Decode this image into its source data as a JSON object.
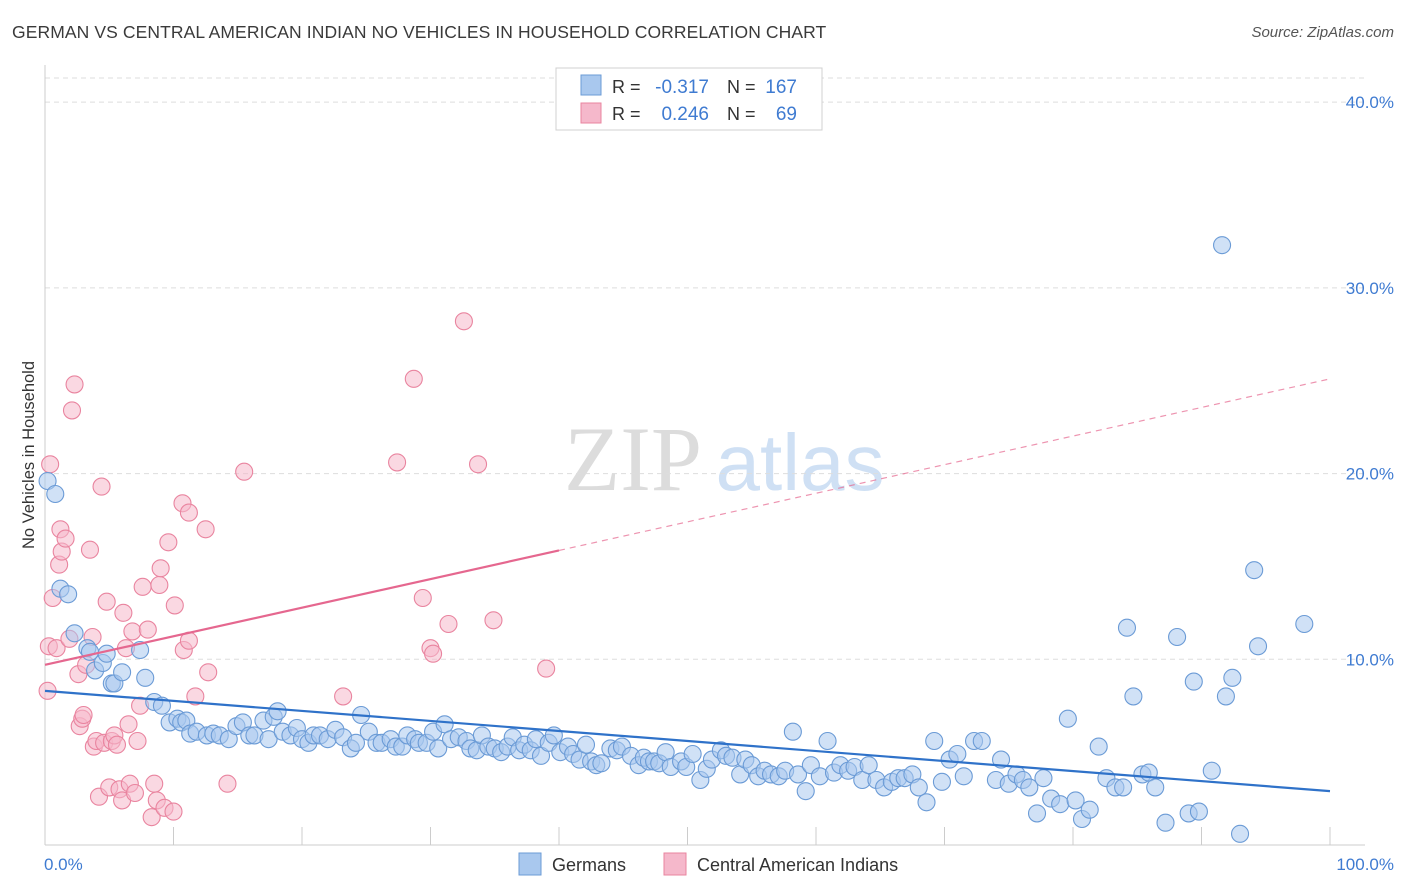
{
  "title": "GERMAN VS CENTRAL AMERICAN INDIAN NO VEHICLES IN HOUSEHOLD CORRELATION CHART",
  "source": "Source: ZipAtlas.com",
  "watermark": {
    "zip": "ZIP",
    "atlas": "atlas"
  },
  "colors": {
    "blue_fill": "#a9c8ee",
    "blue_stroke": "#6b9bd6",
    "blue_line": "#2f72c9",
    "pink_fill": "#f5b8cb",
    "pink_stroke": "#e9849f",
    "pink_line": "#e5678f",
    "tick_text": "#3f7bd1",
    "grid": "#dddddd"
  },
  "legend_stats": [
    {
      "r_label": "R =",
      "r_value": "-0.317",
      "n_label": "N =",
      "n_value": "167"
    },
    {
      "r_label": "R =",
      "r_value": "0.246",
      "n_label": "N =",
      "n_value": "69"
    }
  ],
  "chart_data": {
    "type": "scatter",
    "title": "GERMAN VS CENTRAL AMERICAN INDIAN NO VEHICLES IN HOUSEHOLD CORRELATION CHART",
    "xlabel": "",
    "ylabel": "No Vehicles in Household",
    "xlim": [
      0,
      100
    ],
    "ylim": [
      0,
      42
    ],
    "x_tick_labels": [
      "0.0%",
      "100.0%"
    ],
    "y_ticks": [
      10,
      20,
      30,
      40
    ],
    "y_tick_labels": [
      "10.0%",
      "20.0%",
      "30.0%",
      "40.0%"
    ],
    "grid": true,
    "legend_position": "bottom-center",
    "series": [
      {
        "name": "Germans",
        "color": "#a9c8ee",
        "trend": {
          "x": [
            0,
            100
          ],
          "y": [
            8.3,
            2.9
          ],
          "dashed_from": null
        },
        "points": [
          [
            0.2,
            19.6
          ],
          [
            0.8,
            18.9
          ],
          [
            1.2,
            13.8
          ],
          [
            1.8,
            13.5
          ],
          [
            2.3,
            11.4
          ],
          [
            3.3,
            10.6
          ],
          [
            3.5,
            10.4
          ],
          [
            3.9,
            9.4
          ],
          [
            4.5,
            9.8
          ],
          [
            4.8,
            10.3
          ],
          [
            5.2,
            8.7
          ],
          [
            5.4,
            8.7
          ],
          [
            6.0,
            9.3
          ],
          [
            7.4,
            10.5
          ],
          [
            7.8,
            9.0
          ],
          [
            8.5,
            7.7
          ],
          [
            9.1,
            7.5
          ],
          [
            9.7,
            6.6
          ],
          [
            10.3,
            6.8
          ],
          [
            10.6,
            6.6
          ],
          [
            11.0,
            6.7
          ],
          [
            11.3,
            6.0
          ],
          [
            11.8,
            6.1
          ],
          [
            12.6,
            5.9
          ],
          [
            13.1,
            6.0
          ],
          [
            13.6,
            5.9
          ],
          [
            14.3,
            5.7
          ],
          [
            14.9,
            6.4
          ],
          [
            15.4,
            6.6
          ],
          [
            15.9,
            5.9
          ],
          [
            16.3,
            5.9
          ],
          [
            17.0,
            6.7
          ],
          [
            17.4,
            5.7
          ],
          [
            17.8,
            6.9
          ],
          [
            18.1,
            7.2
          ],
          [
            18.5,
            6.1
          ],
          [
            19.1,
            5.9
          ],
          [
            19.6,
            6.3
          ],
          [
            20.0,
            5.7
          ],
          [
            20.5,
            5.5
          ],
          [
            20.9,
            5.9
          ],
          [
            21.4,
            5.9
          ],
          [
            22.0,
            5.7
          ],
          [
            22.6,
            6.2
          ],
          [
            23.2,
            5.8
          ],
          [
            23.8,
            5.2
          ],
          [
            24.2,
            5.5
          ],
          [
            24.6,
            7.0
          ],
          [
            25.2,
            6.1
          ],
          [
            25.8,
            5.5
          ],
          [
            26.2,
            5.5
          ],
          [
            26.9,
            5.7
          ],
          [
            27.3,
            5.3
          ],
          [
            27.8,
            5.3
          ],
          [
            28.2,
            5.9
          ],
          [
            28.8,
            5.7
          ],
          [
            29.1,
            5.5
          ],
          [
            29.7,
            5.5
          ],
          [
            30.2,
            6.1
          ],
          [
            30.6,
            5.2
          ],
          [
            31.1,
            6.5
          ],
          [
            31.6,
            5.7
          ],
          [
            32.2,
            5.8
          ],
          [
            32.8,
            5.6
          ],
          [
            33.1,
            5.2
          ],
          [
            33.6,
            5.1
          ],
          [
            34.0,
            5.9
          ],
          [
            34.5,
            5.3
          ],
          [
            35.0,
            5.2
          ],
          [
            35.5,
            5.0
          ],
          [
            36.0,
            5.3
          ],
          [
            36.4,
            5.8
          ],
          [
            36.9,
            5.1
          ],
          [
            37.3,
            5.4
          ],
          [
            37.8,
            5.1
          ],
          [
            38.2,
            5.7
          ],
          [
            38.6,
            4.8
          ],
          [
            39.2,
            5.5
          ],
          [
            39.6,
            5.9
          ],
          [
            40.1,
            5.0
          ],
          [
            40.7,
            5.3
          ],
          [
            41.1,
            4.9
          ],
          [
            41.6,
            4.6
          ],
          [
            42.1,
            5.4
          ],
          [
            42.5,
            4.5
          ],
          [
            42.9,
            4.3
          ],
          [
            43.3,
            4.4
          ],
          [
            44.0,
            5.2
          ],
          [
            44.5,
            5.1
          ],
          [
            44.9,
            5.3
          ],
          [
            45.6,
            4.8
          ],
          [
            46.2,
            4.3
          ],
          [
            46.6,
            4.7
          ],
          [
            47.0,
            4.5
          ],
          [
            47.4,
            4.5
          ],
          [
            47.8,
            4.4
          ],
          [
            48.3,
            5.0
          ],
          [
            48.7,
            4.2
          ],
          [
            49.5,
            4.5
          ],
          [
            49.9,
            4.2
          ],
          [
            50.4,
            4.9
          ],
          [
            51.0,
            3.5
          ],
          [
            51.5,
            4.1
          ],
          [
            51.9,
            4.6
          ],
          [
            52.6,
            5.1
          ],
          [
            53.0,
            4.8
          ],
          [
            53.5,
            4.7
          ],
          [
            54.1,
            3.8
          ],
          [
            54.5,
            4.6
          ],
          [
            55.0,
            4.3
          ],
          [
            55.5,
            3.7
          ],
          [
            56.0,
            4.0
          ],
          [
            56.5,
            3.8
          ],
          [
            57.1,
            3.7
          ],
          [
            57.6,
            4.0
          ],
          [
            58.2,
            6.1
          ],
          [
            58.6,
            3.8
          ],
          [
            59.2,
            2.9
          ],
          [
            59.6,
            4.3
          ],
          [
            60.3,
            3.7
          ],
          [
            60.9,
            5.6
          ],
          [
            61.4,
            3.9
          ],
          [
            61.9,
            4.3
          ],
          [
            62.5,
            4.0
          ],
          [
            63.0,
            4.2
          ],
          [
            63.6,
            3.5
          ],
          [
            64.1,
            4.3
          ],
          [
            64.7,
            3.5
          ],
          [
            65.3,
            3.1
          ],
          [
            65.9,
            3.4
          ],
          [
            66.4,
            3.6
          ],
          [
            66.9,
            3.6
          ],
          [
            67.5,
            3.8
          ],
          [
            68.0,
            3.1
          ],
          [
            68.6,
            2.3
          ],
          [
            69.2,
            5.6
          ],
          [
            69.8,
            3.4
          ],
          [
            70.4,
            4.6
          ],
          [
            71.0,
            4.9
          ],
          [
            71.5,
            3.7
          ],
          [
            72.3,
            5.6
          ],
          [
            72.9,
            5.6
          ],
          [
            74.0,
            3.5
          ],
          [
            74.4,
            4.6
          ],
          [
            75.0,
            3.3
          ],
          [
            75.6,
            3.8
          ],
          [
            76.1,
            3.5
          ],
          [
            76.6,
            3.1
          ],
          [
            77.2,
            1.7
          ],
          [
            77.7,
            3.6
          ],
          [
            78.3,
            2.5
          ],
          [
            79.0,
            2.2
          ],
          [
            79.6,
            6.8
          ],
          [
            80.2,
            2.4
          ],
          [
            80.7,
            1.4
          ],
          [
            81.3,
            1.9
          ],
          [
            82.0,
            5.3
          ],
          [
            82.6,
            3.6
          ],
          [
            83.3,
            3.1
          ],
          [
            83.9,
            3.1
          ],
          [
            84.2,
            11.7
          ],
          [
            84.7,
            8.0
          ],
          [
            85.4,
            3.8
          ],
          [
            85.9,
            3.9
          ],
          [
            86.4,
            3.1
          ],
          [
            87.2,
            1.2
          ],
          [
            88.1,
            11.2
          ],
          [
            89.0,
            1.7
          ],
          [
            89.4,
            8.8
          ],
          [
            89.8,
            1.8
          ],
          [
            90.8,
            4.0
          ],
          [
            91.6,
            32.3
          ],
          [
            91.9,
            8.0
          ],
          [
            92.4,
            9.0
          ],
          [
            93.0,
            0.6
          ],
          [
            94.1,
            14.8
          ],
          [
            94.4,
            10.7
          ],
          [
            98.0,
            11.9
          ]
        ]
      },
      {
        "name": "Central American Indians",
        "color": "#f5b8cb",
        "trend": {
          "x": [
            0,
            100
          ],
          "y": [
            9.7,
            25.1
          ],
          "dashed_from": 40
        },
        "points": [
          [
            0.2,
            8.3
          ],
          [
            0.3,
            10.7
          ],
          [
            0.4,
            20.5
          ],
          [
            0.6,
            13.3
          ],
          [
            0.9,
            10.6
          ],
          [
            1.1,
            15.1
          ],
          [
            1.2,
            17.0
          ],
          [
            1.3,
            15.8
          ],
          [
            1.6,
            16.5
          ],
          [
            1.9,
            11.1
          ],
          [
            2.1,
            23.4
          ],
          [
            2.3,
            24.8
          ],
          [
            2.6,
            9.2
          ],
          [
            2.7,
            6.4
          ],
          [
            2.9,
            6.8
          ],
          [
            3.0,
            7.0
          ],
          [
            3.2,
            9.7
          ],
          [
            3.5,
            15.9
          ],
          [
            3.7,
            11.2
          ],
          [
            3.8,
            5.3
          ],
          [
            4.0,
            5.6
          ],
          [
            4.2,
            2.6
          ],
          [
            4.4,
            19.3
          ],
          [
            4.6,
            5.5
          ],
          [
            4.8,
            13.1
          ],
          [
            5.0,
            3.1
          ],
          [
            5.2,
            5.6
          ],
          [
            5.4,
            5.9
          ],
          [
            5.6,
            5.4
          ],
          [
            5.8,
            3.0
          ],
          [
            6.0,
            2.4
          ],
          [
            6.1,
            12.5
          ],
          [
            6.3,
            10.6
          ],
          [
            6.5,
            6.5
          ],
          [
            6.6,
            3.3
          ],
          [
            6.8,
            11.5
          ],
          [
            7.0,
            2.8
          ],
          [
            7.2,
            5.6
          ],
          [
            7.4,
            7.5
          ],
          [
            7.6,
            13.9
          ],
          [
            8.0,
            11.6
          ],
          [
            8.3,
            1.5
          ],
          [
            8.5,
            3.3
          ],
          [
            8.7,
            2.4
          ],
          [
            8.9,
            14.0
          ],
          [
            9.0,
            14.9
          ],
          [
            9.3,
            2.0
          ],
          [
            9.6,
            16.3
          ],
          [
            10.0,
            1.8
          ],
          [
            10.1,
            12.9
          ],
          [
            10.7,
            18.4
          ],
          [
            10.8,
            10.5
          ],
          [
            11.2,
            17.9
          ],
          [
            11.2,
            11.0
          ],
          [
            11.7,
            8.0
          ],
          [
            12.5,
            17.0
          ],
          [
            12.7,
            9.3
          ],
          [
            14.2,
            3.3
          ],
          [
            15.5,
            20.1
          ],
          [
            23.2,
            8.0
          ],
          [
            27.4,
            20.6
          ],
          [
            28.7,
            25.1
          ],
          [
            29.4,
            13.3
          ],
          [
            30.0,
            10.6
          ],
          [
            30.2,
            10.3
          ],
          [
            31.4,
            11.9
          ],
          [
            32.6,
            28.2
          ],
          [
            33.7,
            20.5
          ],
          [
            34.9,
            12.1
          ],
          [
            39.0,
            9.5
          ]
        ]
      }
    ]
  }
}
